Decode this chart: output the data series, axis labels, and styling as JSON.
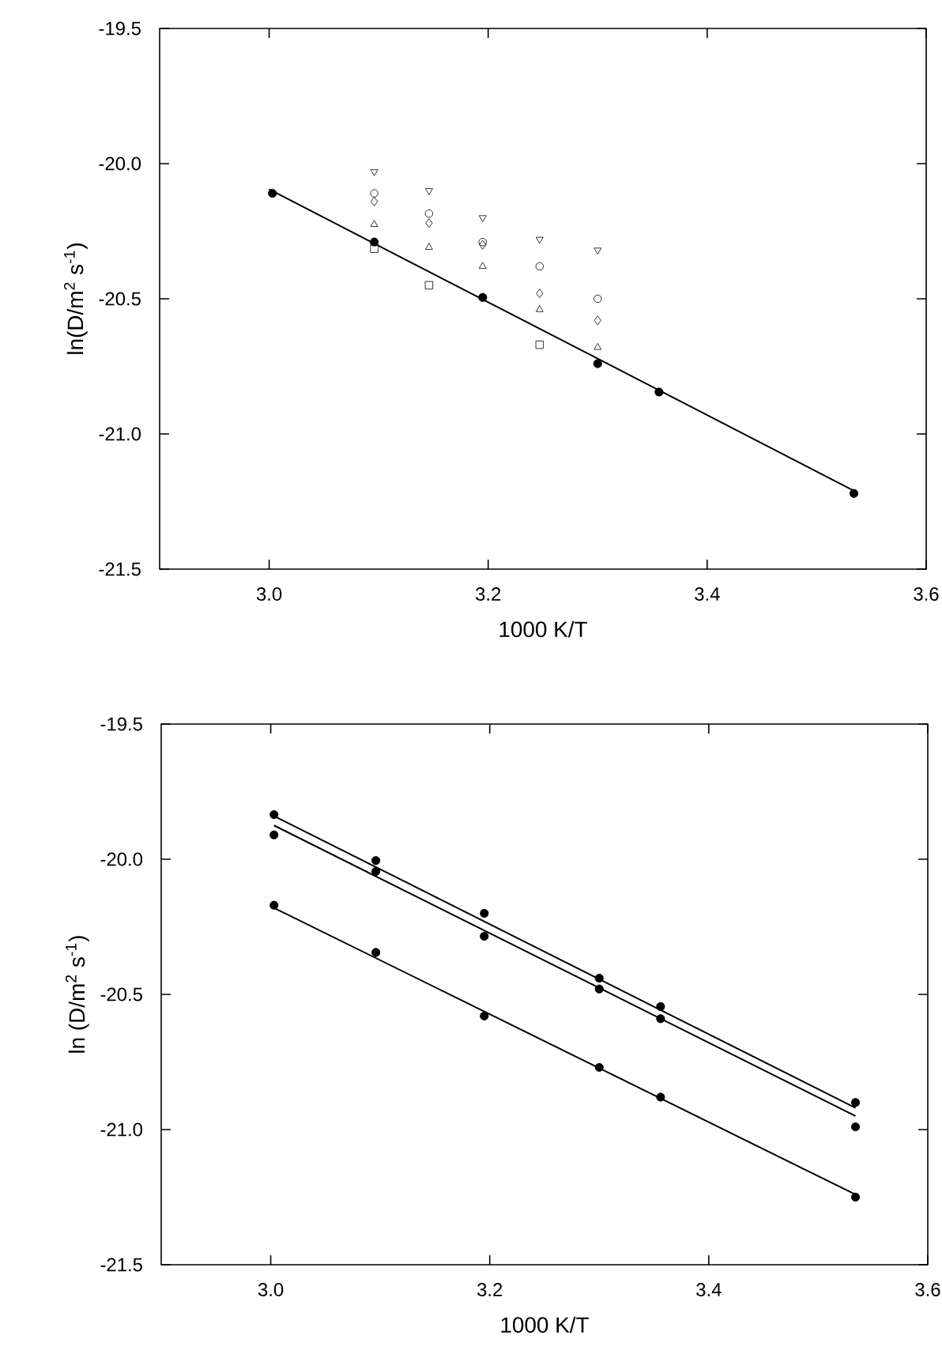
{
  "chart_data": [
    {
      "type": "scatter",
      "xlabel": "1000 K/T",
      "ylabel": "ln(D/m$^{2}$ s$^{-1}$)",
      "xlim": [
        2.9,
        3.6
      ],
      "ylim": [
        -21.5,
        -19.5
      ],
      "xticks": [
        {
          "value": 3.0,
          "label": "3.0"
        },
        {
          "value": 3.2,
          "label": "3.2"
        },
        {
          "value": 3.4,
          "label": "3.4"
        },
        {
          "value": 3.6,
          "label": "3.6"
        }
      ],
      "yticks": [
        {
          "value": -21.5,
          "label": "-21.5"
        },
        {
          "value": -21.0,
          "label": "-21.0"
        },
        {
          "value": -20.5,
          "label": "-20.5"
        },
        {
          "value": -20.0,
          "label": "-20.0"
        },
        {
          "value": -19.5,
          "label": "-19.5"
        }
      ],
      "series": [
        {
          "type": "line",
          "color": "#000000",
          "x": [
            3.0,
            3.534
          ],
          "values": [
            -20.095,
            -21.21
          ]
        },
        {
          "color": "#000000",
          "marker": "circle",
          "x": [
            3.003,
            3.096,
            3.195,
            3.3,
            3.356,
            3.534
          ],
          "values": [
            -20.11,
            -20.29,
            -20.495,
            -20.74,
            -20.845,
            -21.22
          ]
        },
        {
          "color": "#000000",
          "marker": "triangle-down",
          "x": [
            3.096,
            3.146,
            3.195,
            3.247,
            3.3
          ],
          "values": [
            -20.03,
            -20.1,
            -20.2,
            -20.28,
            -20.32
          ]
        },
        {
          "color": "#000000",
          "marker": "circle-open",
          "x": [
            3.096,
            3.146,
            3.195,
            3.247,
            3.3
          ],
          "values": [
            -20.11,
            -20.185,
            -20.29,
            -20.38,
            -20.5
          ]
        },
        {
          "color": "#000000",
          "marker": "diamond",
          "x": [
            3.096,
            3.146,
            3.195,
            3.247,
            3.3
          ],
          "values": [
            -20.14,
            -20.22,
            -20.3,
            -20.48,
            -20.58
          ]
        },
        {
          "color": "#000000",
          "marker": "triangle",
          "x": [
            3.096,
            3.146,
            3.195,
            3.247,
            3.3
          ],
          "values": [
            -20.225,
            -20.31,
            -20.38,
            -20.54,
            -20.68
          ]
        },
        {
          "color": "#000000",
          "marker": "square",
          "x": [
            3.096,
            3.146,
            3.247
          ],
          "values": [
            -20.315,
            -20.45,
            -20.67
          ]
        }
      ]
    },
    {
      "type": "scatter",
      "xlabel": "1000 K/T",
      "ylabel": "ln (D/m$^{2}$ s$^{-1}$)",
      "xlim": [
        2.9,
        3.6
      ],
      "ylim": [
        -21.5,
        -19.5
      ],
      "xticks": [
        {
          "value": 3.0,
          "label": "3.0"
        },
        {
          "value": 3.2,
          "label": "3.2"
        },
        {
          "value": 3.4,
          "label": "3.4"
        },
        {
          "value": 3.6,
          "label": "3.6"
        }
      ],
      "yticks": [
        {
          "value": -21.5,
          "label": "-21.5"
        },
        {
          "value": -21.0,
          "label": "-21.0"
        },
        {
          "value": -20.5,
          "label": "-20.5"
        },
        {
          "value": -20.0,
          "label": "-20.0"
        },
        {
          "value": -19.5,
          "label": "-19.5"
        }
      ],
      "series": [
        {
          "type": "line",
          "color": "#000000",
          "x": [
            3.003,
            3.534
          ],
          "values": [
            -19.84,
            -20.92
          ]
        },
        {
          "type": "line",
          "color": "#000000",
          "x": [
            3.003,
            3.534
          ],
          "values": [
            -19.875,
            -20.95
          ]
        },
        {
          "type": "line",
          "color": "#000000",
          "x": [
            3.003,
            3.534
          ],
          "values": [
            -20.18,
            -21.24
          ]
        },
        {
          "color": "#000000",
          "marker": "circle",
          "x": [
            3.003,
            3.096,
            3.195,
            3.3,
            3.356,
            3.534
          ],
          "values": [
            -19.835,
            -20.005,
            -20.2,
            -20.44,
            -20.545,
            -20.9
          ]
        },
        {
          "color": "#000000",
          "marker": "circle",
          "x": [
            3.003,
            3.096,
            3.195,
            3.3,
            3.356,
            3.534
          ],
          "values": [
            -19.91,
            -20.045,
            -20.285,
            -20.48,
            -20.59,
            -20.99
          ]
        },
        {
          "color": "#000000",
          "marker": "circle",
          "x": [
            3.003,
            3.096,
            3.195,
            3.3,
            3.356,
            3.534
          ],
          "values": [
            -20.17,
            -20.345,
            -20.58,
            -20.77,
            -20.88,
            -21.25
          ]
        }
      ]
    }
  ]
}
